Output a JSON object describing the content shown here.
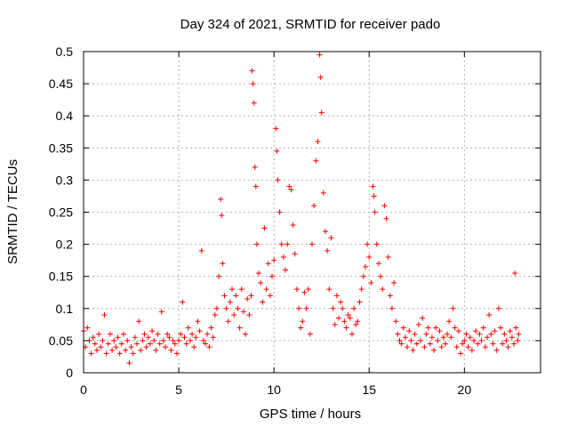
{
  "chart_data": {
    "type": "scatter",
    "title": "Day 324 of 2021, SRMTID for receiver pado",
    "xlabel": "GPS time / hours",
    "ylabel": "SRMTID / TECUs",
    "xlim": [
      0,
      24
    ],
    "ylim": [
      0,
      0.5
    ],
    "x_ticks": [
      {
        "value": 0,
        "label": "0"
      },
      {
        "value": 5,
        "label": "5"
      },
      {
        "value": 10,
        "label": "10"
      },
      {
        "value": 15,
        "label": "15"
      },
      {
        "value": 20,
        "label": "20"
      }
    ],
    "y_ticks": [
      {
        "value": 0,
        "label": "0"
      },
      {
        "value": 0.05,
        "label": "0.05"
      },
      {
        "value": 0.1,
        "label": "0.1"
      },
      {
        "value": 0.15,
        "label": "0.15"
      },
      {
        "value": 0.2,
        "label": "0.2"
      },
      {
        "value": 0.25,
        "label": "0.25"
      },
      {
        "value": 0.3,
        "label": "0.3"
      },
      {
        "value": 0.35,
        "label": "0.35"
      },
      {
        "value": 0.4,
        "label": "0.4"
      },
      {
        "value": 0.45,
        "label": "0.45"
      },
      {
        "value": 0.5,
        "label": "0.5"
      }
    ],
    "grid": true,
    "marker": "+",
    "colors": {
      "series": "#ff0000",
      "grid": "#a0a0a0",
      "axes": "#000000"
    },
    "series": [
      {
        "name": "SRMTID",
        "points": [
          [
            0.0,
            0.065
          ],
          [
            0.1,
            0.04
          ],
          [
            0.2,
            0.07
          ],
          [
            0.3,
            0.05
          ],
          [
            0.4,
            0.03
          ],
          [
            0.5,
            0.055
          ],
          [
            0.6,
            0.045
          ],
          [
            0.7,
            0.035
          ],
          [
            0.8,
            0.06
          ],
          [
            0.9,
            0.04
          ],
          [
            1.0,
            0.05
          ],
          [
            1.1,
            0.09
          ],
          [
            1.2,
            0.03
          ],
          [
            1.3,
            0.045
          ],
          [
            1.4,
            0.06
          ],
          [
            1.5,
            0.035
          ],
          [
            1.6,
            0.05
          ],
          [
            1.7,
            0.04
          ],
          [
            1.8,
            0.055
          ],
          [
            1.9,
            0.03
          ],
          [
            2.0,
            0.045
          ],
          [
            2.1,
            0.06
          ],
          [
            2.2,
            0.035
          ],
          [
            2.3,
            0.05
          ],
          [
            2.4,
            0.015
          ],
          [
            2.5,
            0.04
          ],
          [
            2.6,
            0.03
          ],
          [
            2.7,
            0.055
          ],
          [
            2.8,
            0.045
          ],
          [
            2.9,
            0.08
          ],
          [
            3.0,
            0.035
          ],
          [
            3.1,
            0.05
          ],
          [
            3.2,
            0.06
          ],
          [
            3.3,
            0.04
          ],
          [
            3.4,
            0.055
          ],
          [
            3.5,
            0.045
          ],
          [
            3.6,
            0.065
          ],
          [
            3.7,
            0.05
          ],
          [
            3.8,
            0.035
          ],
          [
            3.9,
            0.06
          ],
          [
            4.0,
            0.045
          ],
          [
            4.1,
            0.095
          ],
          [
            4.2,
            0.05
          ],
          [
            4.3,
            0.04
          ],
          [
            4.4,
            0.06
          ],
          [
            4.5,
            0.055
          ],
          [
            4.6,
            0.035
          ],
          [
            4.7,
            0.05
          ],
          [
            4.8,
            0.045
          ],
          [
            4.9,
            0.03
          ],
          [
            5.0,
            0.05
          ],
          [
            5.1,
            0.06
          ],
          [
            5.2,
            0.11
          ],
          [
            5.3,
            0.055
          ],
          [
            5.4,
            0.045
          ],
          [
            5.5,
            0.07
          ],
          [
            5.6,
            0.05
          ],
          [
            5.7,
            0.06
          ],
          [
            5.8,
            0.04
          ],
          [
            5.9,
            0.055
          ],
          [
            6.0,
            0.08
          ],
          [
            6.1,
            0.065
          ],
          [
            6.2,
            0.19
          ],
          [
            6.3,
            0.05
          ],
          [
            6.4,
            0.045
          ],
          [
            6.5,
            0.06
          ],
          [
            6.6,
            0.04
          ],
          [
            6.7,
            0.07
          ],
          [
            6.8,
            0.055
          ],
          [
            6.9,
            0.09
          ],
          [
            7.0,
            0.1
          ],
          [
            7.1,
            0.15
          ],
          [
            7.2,
            0.27
          ],
          [
            7.25,
            0.245
          ],
          [
            7.3,
            0.17
          ],
          [
            7.4,
            0.12
          ],
          [
            7.5,
            0.1
          ],
          [
            7.6,
            0.08
          ],
          [
            7.7,
            0.11
          ],
          [
            7.8,
            0.13
          ],
          [
            7.9,
            0.09
          ],
          [
            8.0,
            0.12
          ],
          [
            8.1,
            0.1
          ],
          [
            8.2,
            0.07
          ],
          [
            8.3,
            0.13
          ],
          [
            8.4,
            0.095
          ],
          [
            8.5,
            0.06
          ],
          [
            8.6,
            0.115
          ],
          [
            8.7,
            0.09
          ],
          [
            8.8,
            0.12
          ],
          [
            8.85,
            0.47
          ],
          [
            8.9,
            0.45
          ],
          [
            8.95,
            0.42
          ],
          [
            9.0,
            0.32
          ],
          [
            9.05,
            0.29
          ],
          [
            9.1,
            0.2
          ],
          [
            9.2,
            0.155
          ],
          [
            9.3,
            0.14
          ],
          [
            9.4,
            0.11
          ],
          [
            9.5,
            0.225
          ],
          [
            9.6,
            0.13
          ],
          [
            9.7,
            0.17
          ],
          [
            9.8,
            0.12
          ],
          [
            9.9,
            0.15
          ],
          [
            10.0,
            0.175
          ],
          [
            10.1,
            0.38
          ],
          [
            10.15,
            0.345
          ],
          [
            10.2,
            0.3
          ],
          [
            10.3,
            0.25
          ],
          [
            10.4,
            0.2
          ],
          [
            10.5,
            0.18
          ],
          [
            10.6,
            0.16
          ],
          [
            10.7,
            0.2
          ],
          [
            10.8,
            0.29
          ],
          [
            10.9,
            0.285
          ],
          [
            11.0,
            0.23
          ],
          [
            11.1,
            0.185
          ],
          [
            11.2,
            0.13
          ],
          [
            11.3,
            0.1
          ],
          [
            11.4,
            0.07
          ],
          [
            11.5,
            0.08
          ],
          [
            11.6,
            0.125
          ],
          [
            11.7,
            0.1
          ],
          [
            11.8,
            0.13
          ],
          [
            11.9,
            0.06
          ],
          [
            12.0,
            0.2
          ],
          [
            12.1,
            0.26
          ],
          [
            12.2,
            0.33
          ],
          [
            12.3,
            0.36
          ],
          [
            12.4,
            0.495
          ],
          [
            12.45,
            0.46
          ],
          [
            12.5,
            0.405
          ],
          [
            12.6,
            0.28
          ],
          [
            12.7,
            0.22
          ],
          [
            12.8,
            0.19
          ],
          [
            12.9,
            0.13
          ],
          [
            13.0,
            0.21
          ],
          [
            13.1,
            0.1
          ],
          [
            13.2,
            0.075
          ],
          [
            13.3,
            0.12
          ],
          [
            13.4,
            0.085
          ],
          [
            13.5,
            0.11
          ],
          [
            13.6,
            0.1
          ],
          [
            13.7,
            0.08
          ],
          [
            13.8,
            0.07
          ],
          [
            13.9,
            0.09
          ],
          [
            14.0,
            0.085
          ],
          [
            14.1,
            0.06
          ],
          [
            14.2,
            0.1
          ],
          [
            14.3,
            0.075
          ],
          [
            14.4,
            0.08
          ],
          [
            14.5,
            0.11
          ],
          [
            14.6,
            0.13
          ],
          [
            14.7,
            0.15
          ],
          [
            14.8,
            0.165
          ],
          [
            14.9,
            0.2
          ],
          [
            15.0,
            0.18
          ],
          [
            15.1,
            0.14
          ],
          [
            15.2,
            0.29
          ],
          [
            15.25,
            0.275
          ],
          [
            15.3,
            0.25
          ],
          [
            15.4,
            0.2
          ],
          [
            15.5,
            0.17
          ],
          [
            15.6,
            0.15
          ],
          [
            15.7,
            0.13
          ],
          [
            15.8,
            0.26
          ],
          [
            15.9,
            0.24
          ],
          [
            16.0,
            0.18
          ],
          [
            16.1,
            0.12
          ],
          [
            16.2,
            0.1
          ],
          [
            16.3,
            0.14
          ],
          [
            16.4,
            0.08
          ],
          [
            16.5,
            0.06
          ],
          [
            16.6,
            0.05
          ],
          [
            16.7,
            0.045
          ],
          [
            16.8,
            0.07
          ],
          [
            16.9,
            0.055
          ],
          [
            17.0,
            0.04
          ],
          [
            17.1,
            0.065
          ],
          [
            17.2,
            0.05
          ],
          [
            17.3,
            0.035
          ],
          [
            17.4,
            0.06
          ],
          [
            17.5,
            0.045
          ],
          [
            17.6,
            0.075
          ],
          [
            17.7,
            0.05
          ],
          [
            17.8,
            0.085
          ],
          [
            17.9,
            0.04
          ],
          [
            18.0,
            0.06
          ],
          [
            18.1,
            0.07
          ],
          [
            18.2,
            0.045
          ],
          [
            18.3,
            0.055
          ],
          [
            18.4,
            0.035
          ],
          [
            18.5,
            0.07
          ],
          [
            18.6,
            0.05
          ],
          [
            18.7,
            0.065
          ],
          [
            18.8,
            0.04
          ],
          [
            18.9,
            0.055
          ],
          [
            19.0,
            0.045
          ],
          [
            19.1,
            0.06
          ],
          [
            19.2,
            0.08
          ],
          [
            19.3,
            0.055
          ],
          [
            19.4,
            0.1
          ],
          [
            19.5,
            0.07
          ],
          [
            19.6,
            0.04
          ],
          [
            19.7,
            0.065
          ],
          [
            19.8,
            0.03
          ],
          [
            19.9,
            0.045
          ],
          [
            20.0,
            0.05
          ],
          [
            20.1,
            0.06
          ],
          [
            20.2,
            0.04
          ],
          [
            20.3,
            0.055
          ],
          [
            20.4,
            0.035
          ],
          [
            20.5,
            0.05
          ],
          [
            20.6,
            0.065
          ],
          [
            20.7,
            0.045
          ],
          [
            20.8,
            0.06
          ],
          [
            20.9,
            0.05
          ],
          [
            21.0,
            0.07
          ],
          [
            21.1,
            0.04
          ],
          [
            21.2,
            0.055
          ],
          [
            21.3,
            0.09
          ],
          [
            21.4,
            0.06
          ],
          [
            21.5,
            0.045
          ],
          [
            21.6,
            0.065
          ],
          [
            21.7,
            0.035
          ],
          [
            21.8,
            0.1
          ],
          [
            21.9,
            0.07
          ],
          [
            22.0,
            0.045
          ],
          [
            22.1,
            0.06
          ],
          [
            22.2,
            0.05
          ],
          [
            22.3,
            0.04
          ],
          [
            22.4,
            0.065
          ],
          [
            22.5,
            0.055
          ],
          [
            22.6,
            0.045
          ],
          [
            22.65,
            0.155
          ],
          [
            22.7,
            0.07
          ],
          [
            22.8,
            0.05
          ],
          [
            22.85,
            0.06
          ]
        ]
      }
    ]
  }
}
